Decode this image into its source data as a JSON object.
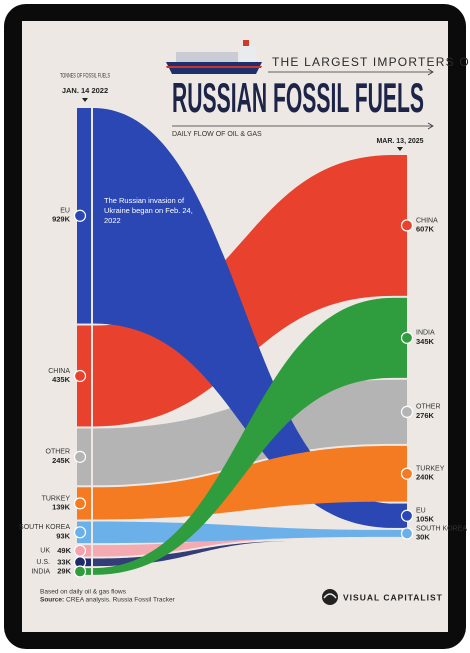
{
  "chart_data": {
    "type": "flow",
    "title_top": "THE LARGEST IMPORTERS OF",
    "title": "RUSSIAN FOSSIL FUELS",
    "subtitle": "DAILY FLOW OF OIL & GAS",
    "unit_label": "TONNES OF FOSSIL FUELS",
    "x": [
      "JAN. 14 2022",
      "MAR. 13, 2025"
    ],
    "annotation": "The Russian invasion of Ukraine began on Feb. 24, 2022",
    "footnote": "Based on daily oil & gas flows",
    "source_label": "Source:",
    "source": "CREA analysis. Russia Fossil Tracker",
    "brand": "VISUAL CAPITALIST",
    "series": [
      {
        "name": "EU",
        "color": "#2a47b3",
        "values": [
          929000,
          105000
        ],
        "value_labels": [
          "929K",
          "105K"
        ]
      },
      {
        "name": "CHINA",
        "color": "#e8412e",
        "values": [
          435000,
          607000
        ],
        "value_labels": [
          "435K",
          "607K"
        ]
      },
      {
        "name": "OTHER",
        "color": "#b4b4b4",
        "values": [
          245000,
          276000
        ],
        "value_labels": [
          "245K",
          "276K"
        ]
      },
      {
        "name": "TURKEY",
        "color": "#f47b22",
        "values": [
          139000,
          240000
        ],
        "value_labels": [
          "139K",
          "240K"
        ]
      },
      {
        "name": "SOUTH KOREA",
        "color": "#6cb0ea",
        "values": [
          93000,
          30000
        ],
        "value_labels": [
          "93K",
          "30K"
        ]
      },
      {
        "name": "UK",
        "color": "#f3a3ab",
        "values": [
          49000,
          0
        ],
        "value_labels": [
          "49K",
          null
        ]
      },
      {
        "name": "U.S.",
        "color": "#1e2a6a",
        "values": [
          33000,
          0
        ],
        "value_labels": [
          "33K",
          null
        ]
      },
      {
        "name": "INDIA",
        "color": "#2f9c3e",
        "values": [
          29000,
          345000
        ],
        "value_labels": [
          "29K",
          "345K"
        ]
      }
    ]
  }
}
